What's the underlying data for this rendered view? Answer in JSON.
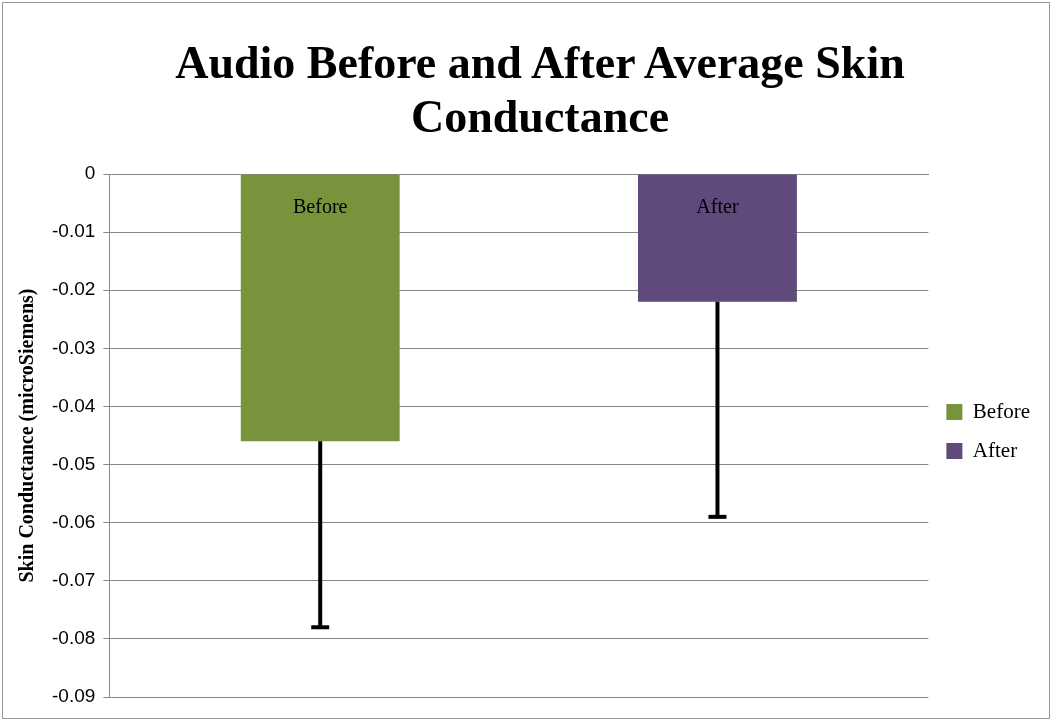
{
  "chart_data": {
    "type": "bar",
    "title": "Audio Before and After Average Skin Conductance",
    "ylabel": "Skin Conductance (microSiemens)",
    "categories": [
      null
    ],
    "series": [
      {
        "name": "Before",
        "color": "#77933c",
        "values": [
          -0.046
        ],
        "errors": [
          [
            -0.078,
            -0.046
          ]
        ]
      },
      {
        "name": "After",
        "color": "#604a7b",
        "values": [
          -0.022
        ],
        "errors": [
          [
            -0.059,
            -0.022
          ]
        ]
      }
    ],
    "annotations": [
      {
        "text": "Before",
        "y": 0
      },
      {
        "text": "After",
        "y": 0
      }
    ],
    "ylim": [
      -0.09,
      0
    ],
    "yticks": [
      -0.09,
      -0.08,
      -0.07,
      -0.06,
      -0.05,
      -0.04,
      -0.03,
      -0.02,
      -0.01,
      0
    ],
    "grid": "y",
    "legend": "right"
  }
}
